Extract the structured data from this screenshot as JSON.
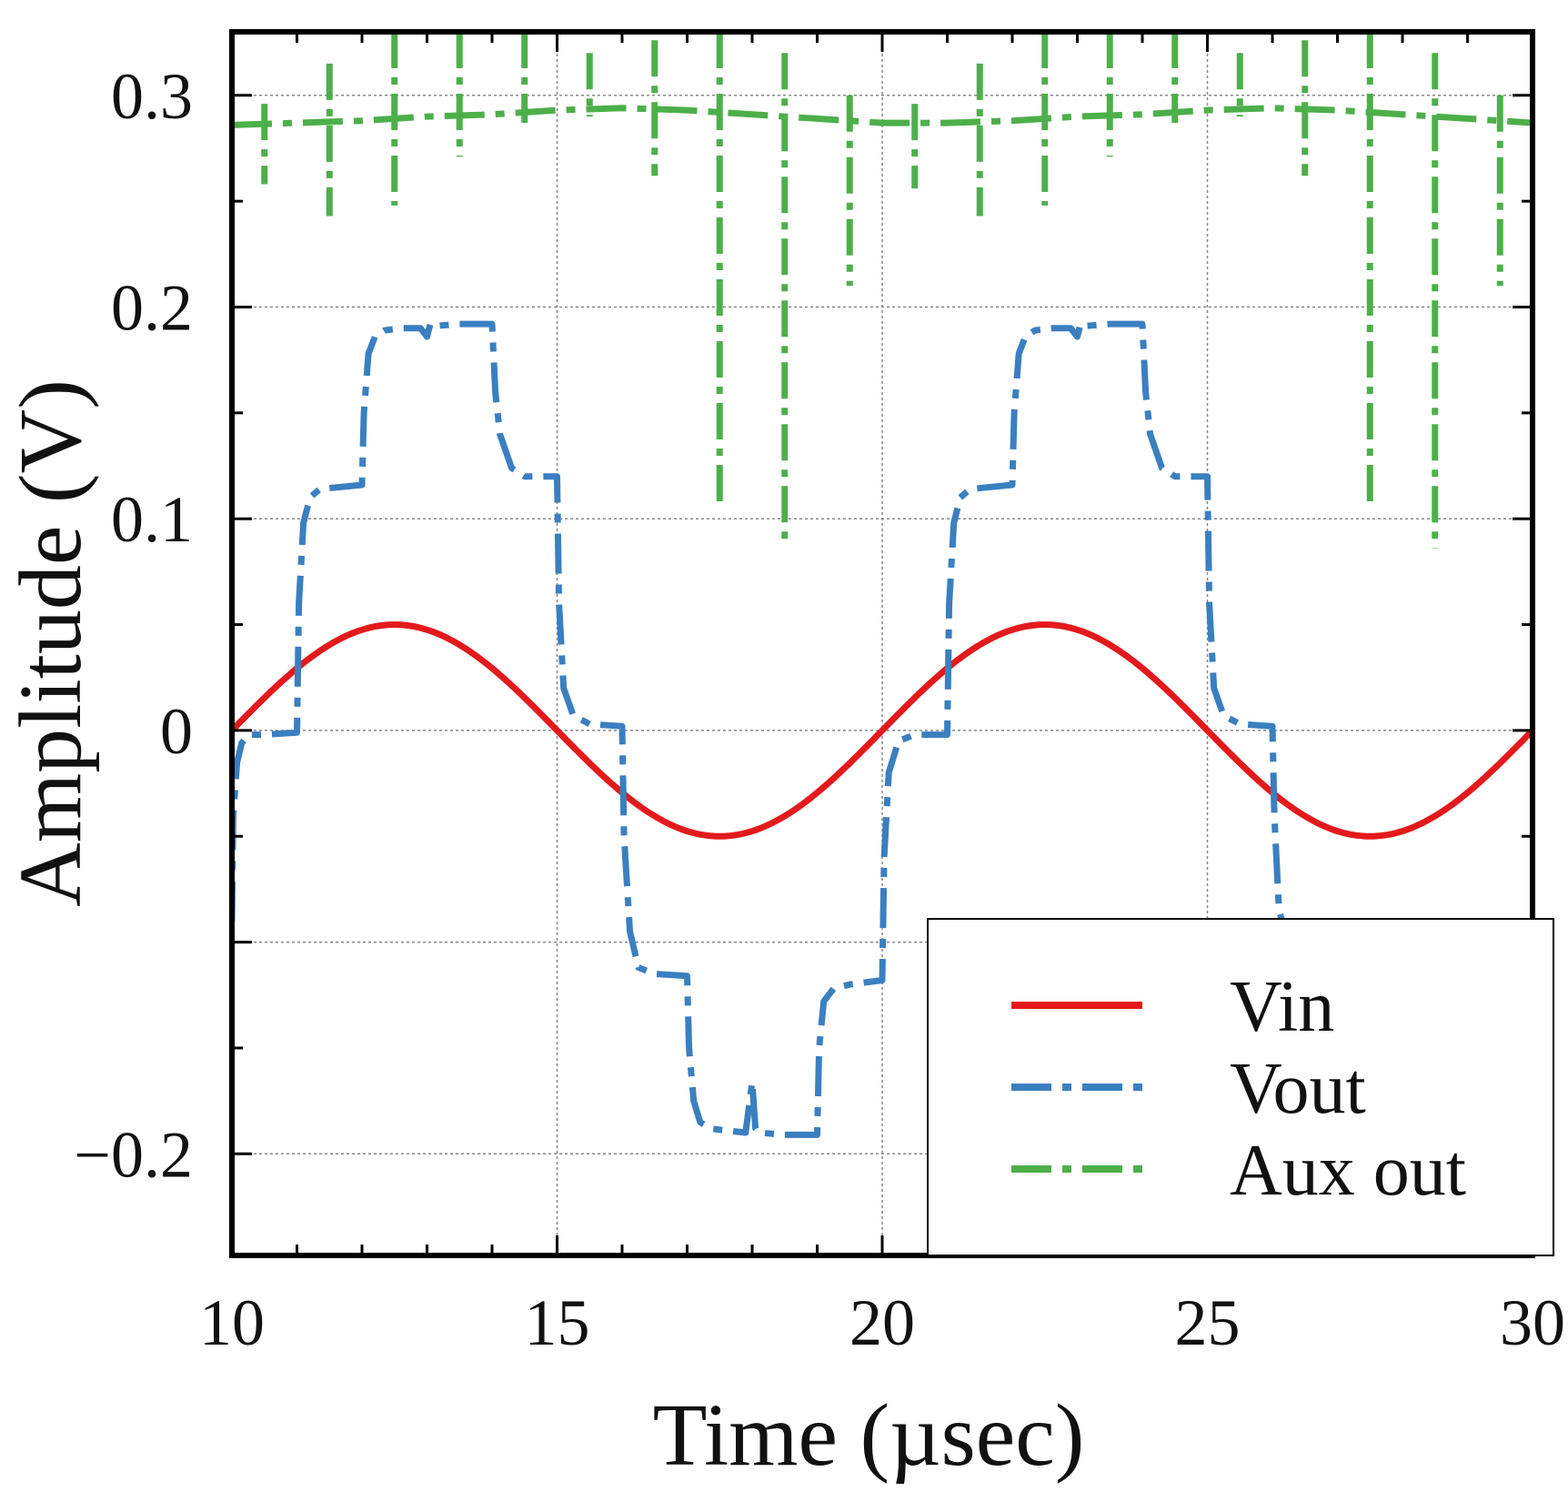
{
  "chart_data": {
    "type": "line",
    "title": "",
    "xlabel": "Time (µsec)",
    "ylabel": "Amplitude (V)",
    "xlim": [
      10,
      30
    ],
    "ylim": [
      -0.248,
      0.33
    ],
    "x_ticks": [
      10,
      15,
      20,
      25,
      30
    ],
    "x_tick_labels": [
      "10",
      "15",
      "20",
      "25",
      "30"
    ],
    "y_ticks": [
      -0.2,
      -0.1,
      0,
      0.1,
      0.2,
      0.3
    ],
    "y_tick_labels": [
      "−0.2",
      "",
      "0",
      "0.1",
      "0.2",
      "0.3"
    ],
    "grid": true,
    "legend_position": "lower-right",
    "series": [
      {
        "name": "Vin",
        "color": "#e31a1c",
        "style": "solid",
        "kind": "sine",
        "amplitude": 0.05,
        "period": 10,
        "start": 10,
        "end": 30
      },
      {
        "name": "Vout",
        "color": "#3a7fc0",
        "style": "dashdot",
        "x": [
          10.0,
          10.02,
          10.08,
          10.15,
          10.25,
          10.5,
          11.0,
          11.03,
          11.1,
          11.2,
          11.35,
          12.0,
          12.03,
          12.1,
          12.2,
          12.35,
          12.6,
          12.9,
          13.0,
          13.05,
          13.1,
          13.5,
          14.0,
          14.05,
          14.12,
          14.3,
          14.5,
          15.0,
          15.03,
          15.1,
          15.25,
          15.5,
          16.0,
          16.03,
          16.12,
          16.25,
          16.5,
          17.0,
          17.03,
          17.1,
          17.2,
          17.35,
          17.6,
          17.9,
          18.0,
          18.05,
          18.1,
          18.5,
          19.0,
          19.03,
          19.1,
          19.25,
          19.5,
          20.0,
          20.03,
          20.1,
          20.25,
          20.5,
          21.0,
          21.03,
          21.1,
          21.2,
          21.35,
          22.0,
          22.03,
          22.1,
          22.2,
          22.35,
          22.6,
          22.9,
          23.0,
          23.05,
          23.1,
          23.5,
          24.0,
          24.05,
          24.12,
          24.3,
          24.5,
          25.0,
          25.03,
          25.1,
          25.25,
          25.5,
          26.0,
          26.03,
          26.1,
          26.15
        ],
        "y": [
          -0.09,
          -0.04,
          -0.015,
          -0.006,
          -0.002,
          -0.002,
          -0.001,
          0.06,
          0.098,
          0.11,
          0.114,
          0.116,
          0.15,
          0.178,
          0.186,
          0.189,
          0.19,
          0.19,
          0.186,
          0.192,
          0.191,
          0.192,
          0.192,
          0.16,
          0.14,
          0.124,
          0.12,
          0.12,
          0.06,
          0.02,
          0.007,
          0.003,
          0.002,
          -0.05,
          -0.095,
          -0.112,
          -0.115,
          -0.116,
          -0.15,
          -0.175,
          -0.185,
          -0.188,
          -0.189,
          -0.19,
          -0.166,
          -0.188,
          -0.19,
          -0.191,
          -0.191,
          -0.15,
          -0.128,
          -0.122,
          -0.12,
          -0.118,
          -0.06,
          -0.02,
          -0.005,
          -0.002,
          -0.002,
          0.06,
          0.098,
          0.11,
          0.114,
          0.116,
          0.15,
          0.178,
          0.186,
          0.189,
          0.19,
          0.19,
          0.186,
          0.192,
          0.191,
          0.192,
          0.192,
          0.16,
          0.14,
          0.124,
          0.12,
          0.12,
          0.06,
          0.02,
          0.007,
          0.003,
          0.002,
          -0.04,
          -0.085,
          -0.09
        ]
      },
      {
        "name": "Aux out",
        "color": "#4daf4a",
        "style": "dashdot",
        "x": [
          10.0,
          11.0,
          12.0,
          13.0,
          14.0,
          15.0,
          16.0,
          17.0,
          18.0,
          19.0,
          20.0,
          21.0,
          22.0,
          23.0,
          24.0,
          25.0,
          26.0,
          27.0,
          28.0,
          29.0,
          30.0
        ],
        "y": [
          0.286,
          0.287,
          0.288,
          0.29,
          0.291,
          0.293,
          0.294,
          0.293,
          0.291,
          0.289,
          0.287,
          0.287,
          0.288,
          0.29,
          0.291,
          0.293,
          0.294,
          0.293,
          0.291,
          0.289,
          0.287
        ],
        "spikes": [
          {
            "x": 10.5,
            "hi": 0.296,
            "lo": 0.258
          },
          {
            "x": 11.5,
            "hi": 0.315,
            "lo": 0.243
          },
          {
            "x": 12.5,
            "hi": 0.33,
            "lo": 0.248
          },
          {
            "x": 13.5,
            "hi": 0.33,
            "lo": 0.271
          },
          {
            "x": 14.5,
            "hi": 0.33,
            "lo": 0.287
          },
          {
            "x": 15.5,
            "hi": 0.32,
            "lo": 0.29
          },
          {
            "x": 16.5,
            "hi": 0.326,
            "lo": 0.262
          },
          {
            "x": 17.5,
            "hi": 0.33,
            "lo": 0.104
          },
          {
            "x": 18.5,
            "hi": 0.32,
            "lo": 0.089
          },
          {
            "x": 19.5,
            "hi": 0.3,
            "lo": 0.21
          },
          {
            "x": 20.5,
            "hi": 0.296,
            "lo": 0.256
          },
          {
            "x": 21.5,
            "hi": 0.315,
            "lo": 0.243
          },
          {
            "x": 22.5,
            "hi": 0.33,
            "lo": 0.248
          },
          {
            "x": 23.5,
            "hi": 0.33,
            "lo": 0.271
          },
          {
            "x": 24.5,
            "hi": 0.33,
            "lo": 0.287
          },
          {
            "x": 25.5,
            "hi": 0.32,
            "lo": 0.29
          },
          {
            "x": 26.5,
            "hi": 0.326,
            "lo": 0.262
          },
          {
            "x": 27.5,
            "hi": 0.33,
            "lo": 0.104
          },
          {
            "x": 28.5,
            "hi": 0.32,
            "lo": 0.086
          },
          {
            "x": 29.5,
            "hi": 0.3,
            "lo": 0.21
          }
        ]
      }
    ]
  }
}
